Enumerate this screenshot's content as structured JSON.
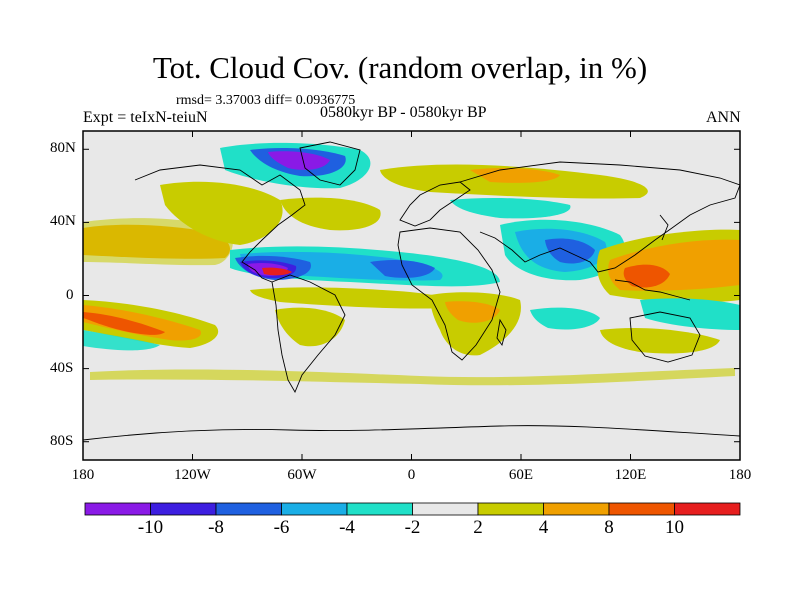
{
  "title": "Tot. Cloud Cov. (random overlap, in %)",
  "stats": "rmsd= 3.37003 diff= 0.0936775",
  "experiment": "Expt = teIxN-teiuN",
  "period": "0580kyr BP - 0580kyr BP",
  "season": "ANN",
  "map": {
    "projection": "cylindrical-equidistant",
    "lon_range": [
      -180,
      180
    ],
    "lat_range": [
      -90,
      90
    ],
    "x_ticks": [
      {
        "lon": -180,
        "label": "180"
      },
      {
        "lon": -120,
        "label": "120W"
      },
      {
        "lon": -60,
        "label": "60W"
      },
      {
        "lon": 0,
        "label": "0"
      },
      {
        "lon": 60,
        "label": "60E"
      },
      {
        "lon": 120,
        "label": "120E"
      },
      {
        "lon": 180,
        "label": "180"
      }
    ],
    "y_ticks": [
      {
        "lat": 80,
        "label": "80N"
      },
      {
        "lat": 40,
        "label": "40N"
      },
      {
        "lat": 0,
        "label": "0"
      },
      {
        "lat": -40,
        "label": "40S"
      },
      {
        "lat": -80,
        "label": "80S"
      }
    ],
    "background_color": "#e8e8e8"
  },
  "colorbar": {
    "labels": [
      "-10",
      "-8",
      "-6",
      "-4",
      "-2",
      "2",
      "4",
      "8",
      "10"
    ],
    "colors": [
      "#8a1ae6",
      "#3d1ee0",
      "#1f60e0",
      "#1aaee6",
      "#20e0c8",
      "#e8e8e8",
      "#c8cc00",
      "#f0a000",
      "#ee5500",
      "#e61e1e"
    ]
  }
}
